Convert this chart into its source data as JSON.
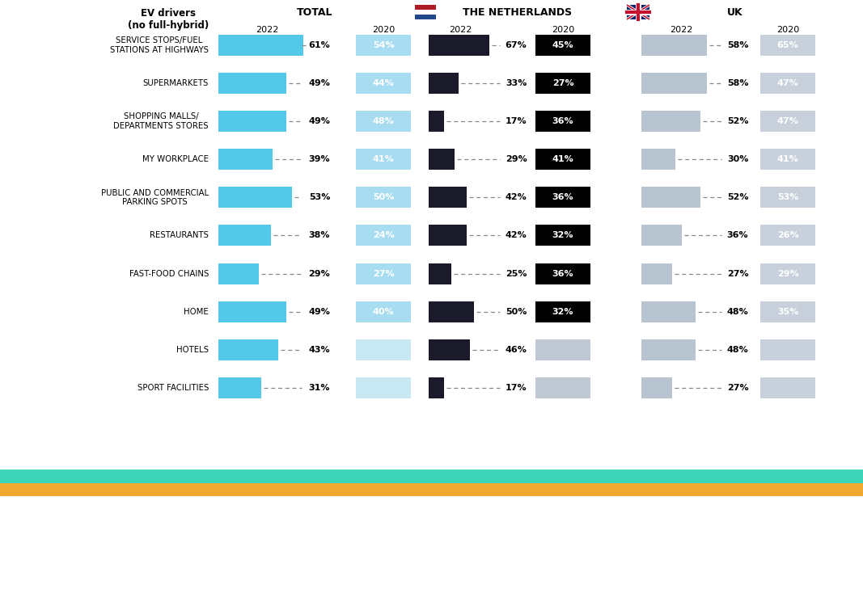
{
  "categories": [
    "SERVICE STOPS/FUEL\nSTATIONS AT HIGHWAYS",
    "SUPERMARKETS",
    "SHOPPING MALLS/\nDEPARTMENTS STORES",
    "MY WORKPLACE",
    "PUBLIC AND COMMERCIAL\nPARKING SPOTS",
    "RESTAURANTS",
    "FAST-FOOD CHAINS",
    "HOME",
    "HOTELS",
    "SPORT FACILITIES"
  ],
  "total_2022": [
    61,
    49,
    49,
    39,
    53,
    38,
    29,
    49,
    43,
    31
  ],
  "total_2020": [
    54,
    44,
    48,
    41,
    50,
    24,
    27,
    40,
    null,
    null
  ],
  "nl_2022": [
    67,
    33,
    17,
    29,
    42,
    42,
    25,
    50,
    46,
    17
  ],
  "nl_2020": [
    45,
    27,
    36,
    41,
    36,
    32,
    36,
    32,
    null,
    null
  ],
  "uk_2022": [
    58,
    58,
    52,
    30,
    52,
    36,
    27,
    48,
    48,
    27
  ],
  "uk_2020": [
    65,
    47,
    47,
    41,
    53,
    26,
    29,
    35,
    null,
    null
  ],
  "color_total_2022": "#54C8E8",
  "color_total_2020_bg": "#A8DCF0",
  "color_total_2020_text": "#FFFFFF",
  "color_nl_2022": "#1A1A2A",
  "color_nl_2020_bg": "#000000",
  "color_nl_2020_text": "#FFFFFF",
  "color_uk_2022": "#B8C4D0",
  "color_uk_2020_bg": "#C8D0DC",
  "color_uk_2020_text": "#FFFFFF",
  "color_hotels_nl_2020_bg": "#C0C8D4",
  "color_hotels_total_2020_bg": "#C8E8F4",
  "footer_bg": "#1E2235",
  "stripe1_color": "#3DD4B8",
  "stripe2_color": "#F0A830",
  "max_val": 70
}
